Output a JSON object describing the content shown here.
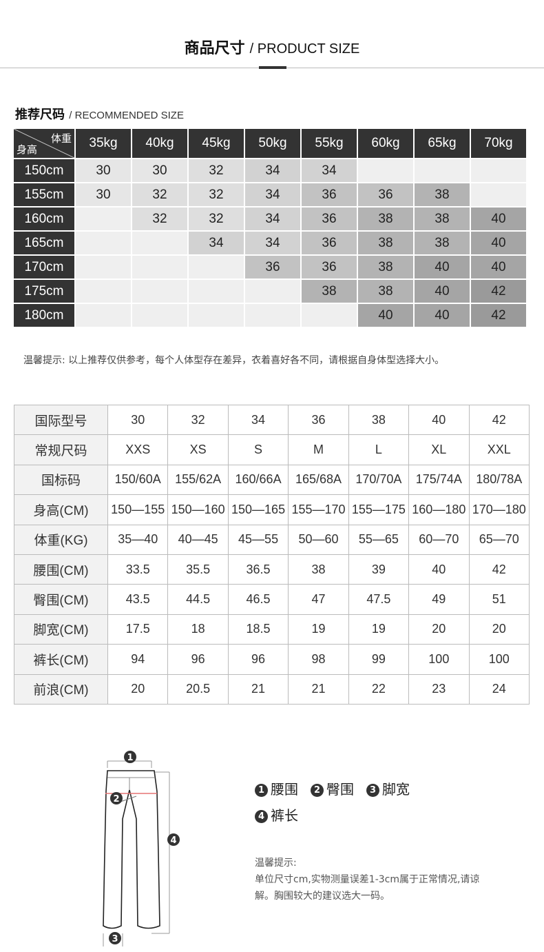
{
  "header": {
    "title_cn": "商品尺寸",
    "title_en": "/ PRODUCT SIZE"
  },
  "recommended": {
    "title_cn": "推荐尺码",
    "title_en": "/ RECOMMENDED SIZE",
    "corner_top": "体重",
    "corner_bottom": "身高",
    "weights": [
      "35kg",
      "40kg",
      "45kg",
      "50kg",
      "55kg",
      "60kg",
      "65kg",
      "70kg"
    ],
    "rows": [
      {
        "height": "150cm",
        "sizes": [
          "30",
          "30",
          "32",
          "34",
          "34",
          "",
          "",
          ""
        ]
      },
      {
        "height": "155cm",
        "sizes": [
          "30",
          "32",
          "32",
          "34",
          "36",
          "36",
          "38",
          ""
        ]
      },
      {
        "height": "160cm",
        "sizes": [
          "",
          "32",
          "32",
          "34",
          "36",
          "38",
          "38",
          "40"
        ]
      },
      {
        "height": "165cm",
        "sizes": [
          "",
          "",
          "34",
          "34",
          "36",
          "38",
          "38",
          "40"
        ]
      },
      {
        "height": "170cm",
        "sizes": [
          "",
          "",
          "",
          "36",
          "36",
          "38",
          "40",
          "40"
        ]
      },
      {
        "height": "175cm",
        "sizes": [
          "",
          "",
          "",
          "",
          "38",
          "38",
          "40",
          "42"
        ]
      },
      {
        "height": "180cm",
        "sizes": [
          "",
          "",
          "",
          "",
          "",
          "40",
          "40",
          "42"
        ]
      }
    ],
    "shade_colors": {
      "": "#efefef",
      "30": "#e6e6e6",
      "32": "#dedede",
      "34": "#d2d2d2",
      "36": "#c2c2c2",
      "38": "#b3b3b3",
      "40": "#a5a5a5",
      "42": "#9a9a9a"
    },
    "tip": "温馨提示: 以上推荐仅供参考，每个人体型存在差异，衣着喜好各不同，请根据自身体型选择大小。"
  },
  "size_table": {
    "rows": [
      {
        "label": "国际型号",
        "values": [
          "30",
          "32",
          "34",
          "36",
          "38",
          "40",
          "42"
        ]
      },
      {
        "label": "常规尺码",
        "values": [
          "XXS",
          "XS",
          "S",
          "M",
          "L",
          "XL",
          "XXL"
        ]
      },
      {
        "label": "国标码",
        "values": [
          "150/60A",
          "155/62A",
          "160/66A",
          "165/68A",
          "170/70A",
          "175/74A",
          "180/78A"
        ]
      },
      {
        "label": "身高(CM)",
        "values": [
          "150—155",
          "150—160",
          "150—165",
          "155—170",
          "155—175",
          "160—180",
          "170—180"
        ]
      },
      {
        "label": "体重(KG)",
        "values": [
          "35—40",
          "40—45",
          "45—55",
          "50—60",
          "55—65",
          "60—70",
          "65—70"
        ]
      },
      {
        "label": "腰围(CM)",
        "values": [
          "33.5",
          "35.5",
          "36.5",
          "38",
          "39",
          "40",
          "42"
        ]
      },
      {
        "label": "臀围(CM)",
        "values": [
          "43.5",
          "44.5",
          "46.5",
          "47",
          "47.5",
          "49",
          "51"
        ]
      },
      {
        "label": "脚宽(CM)",
        "values": [
          "17.5",
          "18",
          "18.5",
          "19",
          "19",
          "20",
          "20"
        ]
      },
      {
        "label": "裤长(CM)",
        "values": [
          "94",
          "96",
          "96",
          "98",
          "99",
          "100",
          "100"
        ]
      },
      {
        "label": "前浪(CM)",
        "values": [
          "20",
          "20.5",
          "21",
          "21",
          "22",
          "23",
          "24"
        ]
      }
    ]
  },
  "diagram": {
    "markers": [
      "1",
      "2",
      "3",
      "4"
    ],
    "legend": [
      {
        "n": "1",
        "label": "腰围"
      },
      {
        "n": "2",
        "label": "臀围"
      },
      {
        "n": "3",
        "label": "脚宽"
      },
      {
        "n": "4",
        "label": "裤长"
      }
    ],
    "note_title": "温馨提示:",
    "note_text": "单位尺寸cm,实物测量误差1-3cm属于正常情况,请谅解。胸围较大的建议选大一码。"
  }
}
